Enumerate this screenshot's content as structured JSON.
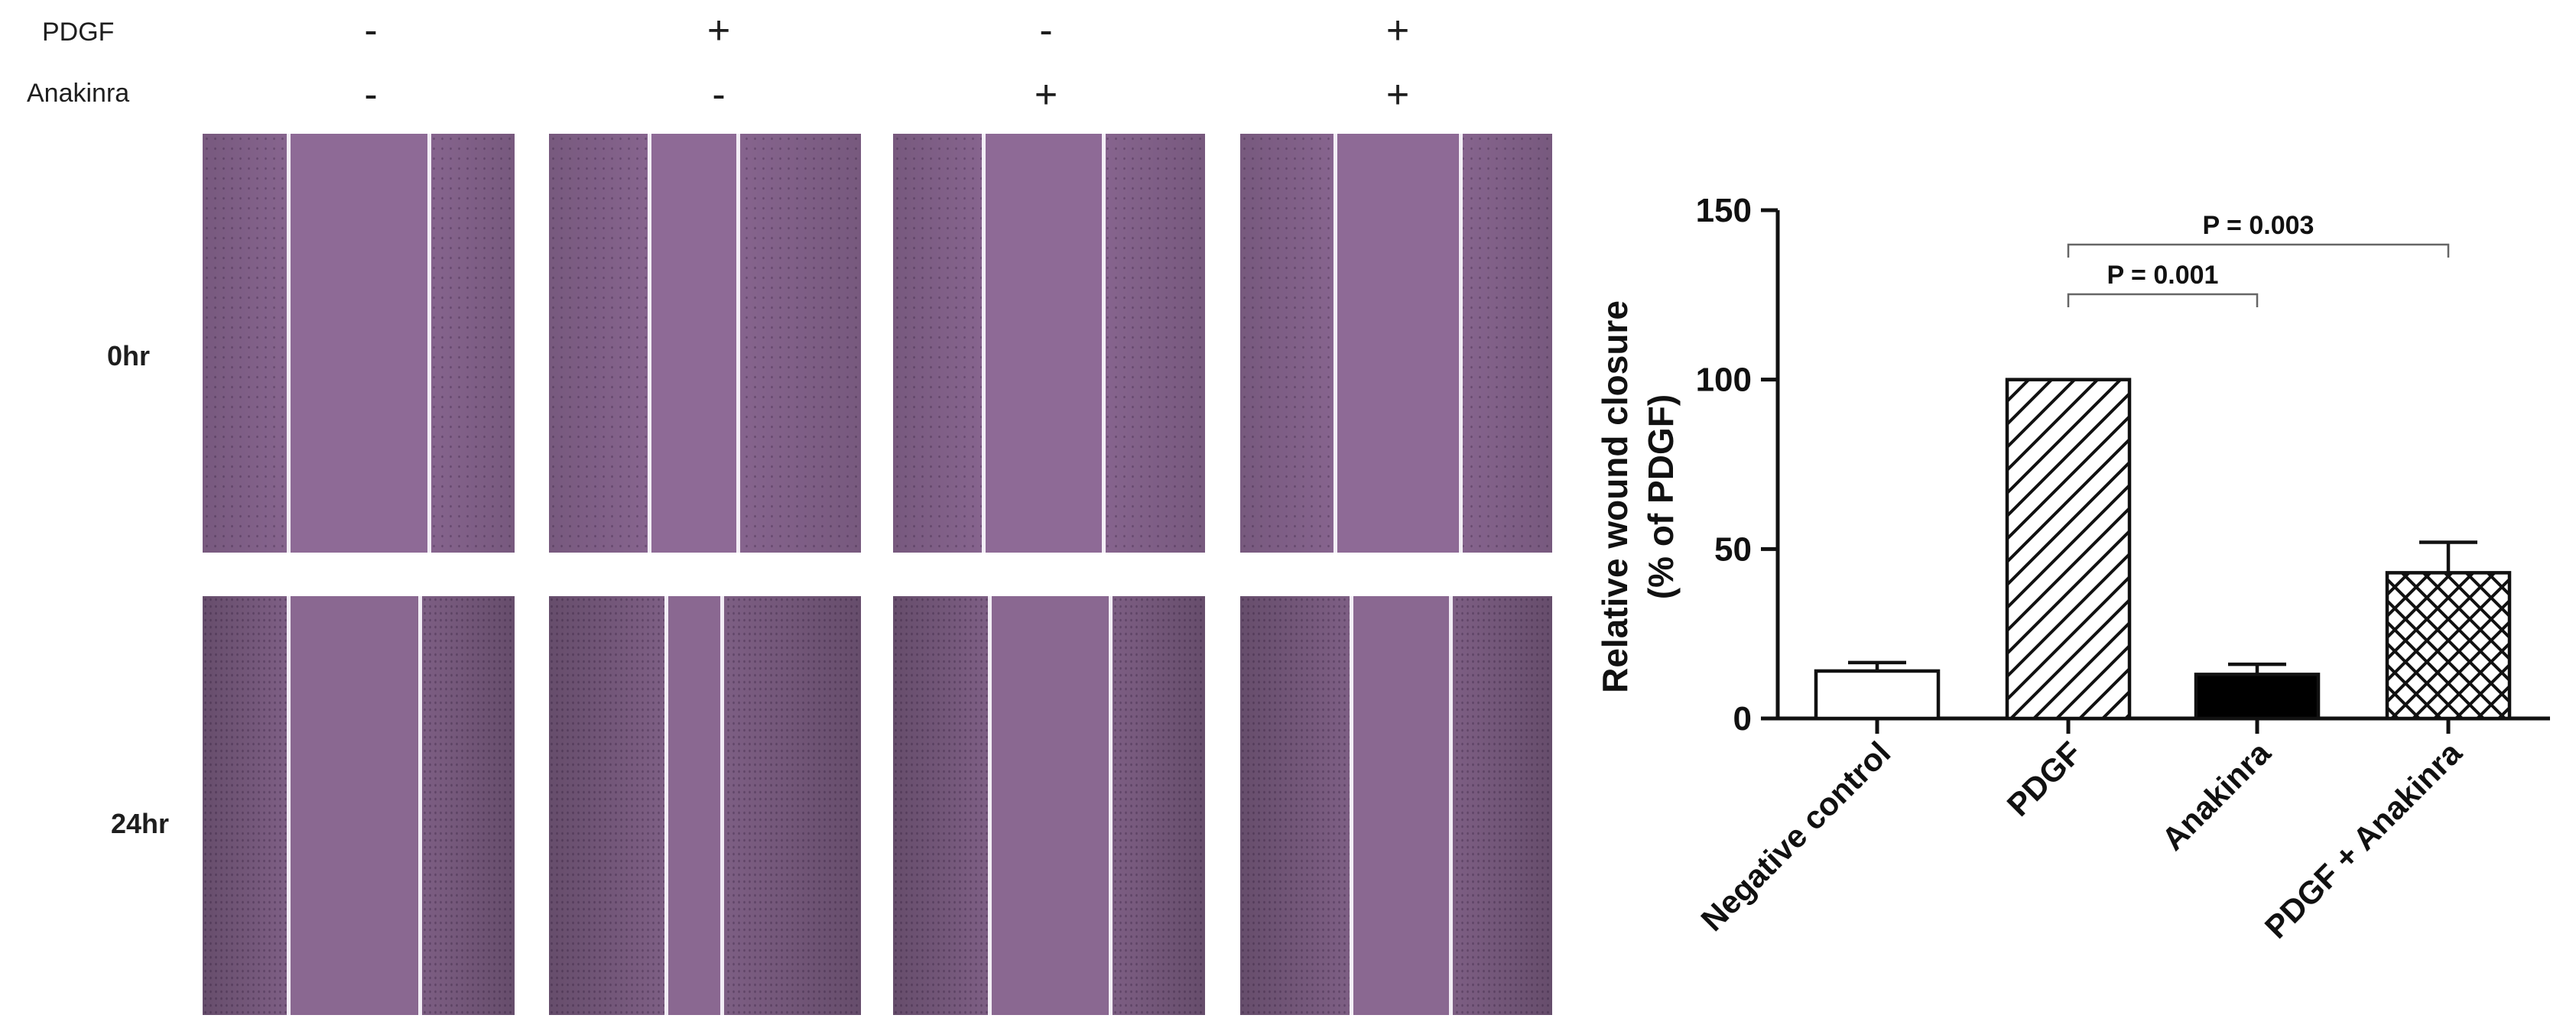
{
  "figure": {
    "treatments": [
      {
        "label": "PDGF",
        "signs": [
          "-",
          "+",
          "-",
          "+"
        ]
      },
      {
        "label": "Anakinra",
        "signs": [
          "-",
          "-",
          "+",
          "+"
        ]
      }
    ],
    "timepoints": [
      "0hr",
      "24hr"
    ]
  },
  "colors": {
    "tissue_0hr": "#8e6a96",
    "tissue_24hr": "#8a6891",
    "lane": "#f2edf5"
  },
  "chart_data": {
    "type": "bar",
    "ylabel_line1": "Relative wound closure",
    "ylabel_line2": "(% of PDGF)",
    "categories": [
      "Negative control",
      "PDGF",
      "Anakinra",
      "PDGF + Anakinra"
    ],
    "values": [
      14,
      100,
      13,
      43
    ],
    "errors": [
      2.5,
      0,
      3,
      9
    ],
    "patterns": [
      "none",
      "diagonal",
      "solid",
      "crosshatch"
    ],
    "ylim": [
      0,
      150
    ],
    "yticks": [
      0,
      50,
      100,
      150
    ],
    "significance": [
      {
        "from": 1,
        "to": 2,
        "label": "P = 0.001"
      },
      {
        "from": 1,
        "to": 3,
        "label": "P = 0.003"
      }
    ]
  }
}
